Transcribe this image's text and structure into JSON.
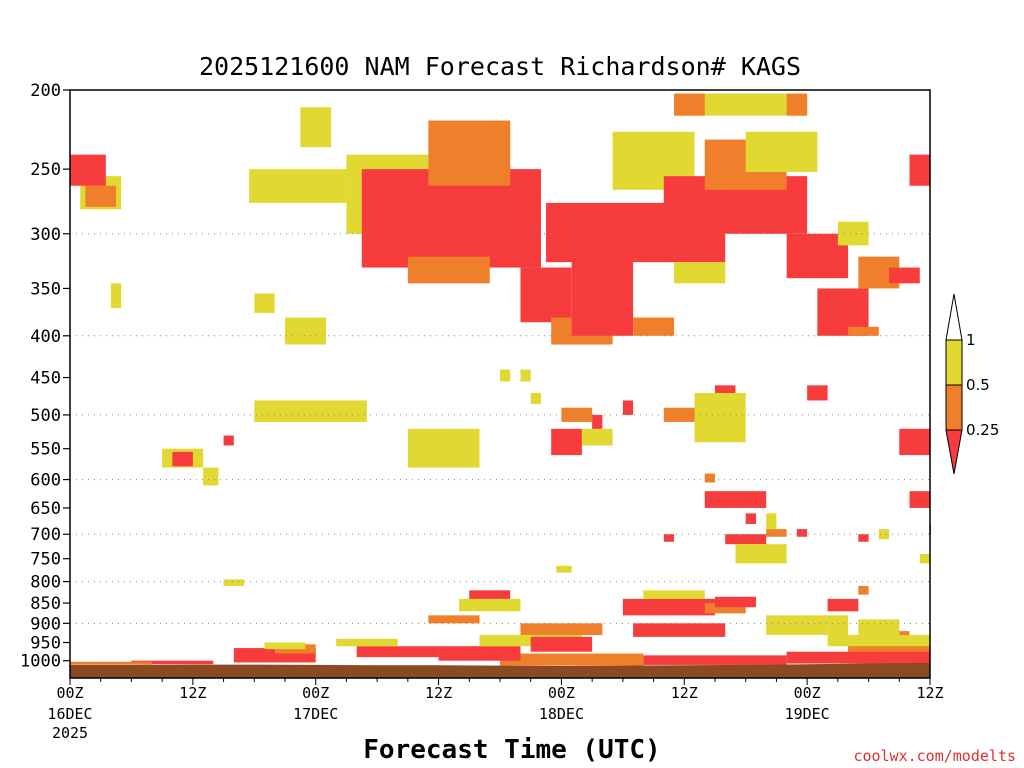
{
  "chart_data": {
    "type": "heatmap",
    "title": "2025121600 NAM Forecast Richardson# KAGS",
    "xlabel": "Forecast Time (UTC)",
    "ylabel": "",
    "y_axis": {
      "unit": "hPa",
      "scale": "log",
      "inverted": true,
      "range": [
        200,
        1050
      ],
      "ticks": [
        200,
        250,
        300,
        350,
        400,
        450,
        500,
        550,
        600,
        650,
        700,
        750,
        800,
        850,
        900,
        950,
        1000
      ],
      "tick_labels": [
        "200",
        "250",
        "300",
        "350",
        "400",
        "450",
        "500",
        "550",
        "600",
        "650",
        "700",
        "750",
        "800",
        "850",
        "900",
        "950",
        "1000"
      ],
      "dotted_grid_at": [
        300,
        400,
        500,
        600,
        700,
        800,
        900
      ]
    },
    "x_axis": {
      "unit": "forecast hour",
      "range": [
        0,
        84
      ],
      "ticks": [
        {
          "hour": 0,
          "label": "00Z",
          "sub": [
            "16DEC",
            "2025"
          ]
        },
        {
          "hour": 12,
          "label": "12Z",
          "sub": []
        },
        {
          "hour": 24,
          "label": "00Z",
          "sub": [
            "17DEC"
          ]
        },
        {
          "hour": 36,
          "label": "12Z",
          "sub": []
        },
        {
          "hour": 48,
          "label": "00Z",
          "sub": [
            "18DEC"
          ]
        },
        {
          "hour": 60,
          "label": "12Z",
          "sub": []
        },
        {
          "hour": 72,
          "label": "00Z",
          "sub": [
            "19DEC"
          ]
        },
        {
          "hour": 84,
          "label": "12Z",
          "sub": []
        }
      ]
    },
    "colorbar": {
      "labels": [
        "1",
        "0.5",
        "0.25"
      ],
      "bins": [
        {
          "range": ">1",
          "color": "#ffffff"
        },
        {
          "range": "0.5-1",
          "color": "#e2d832"
        },
        {
          "range": "0.25-0.5",
          "color": "#ef7f2a"
        },
        {
          "range": "<0.25",
          "color": "#f63c3c"
        }
      ]
    },
    "colors": {
      "yellow": "#e2d832",
      "orange": "#ef7f2a",
      "red": "#f63c3c",
      "ground": "#8a4a22"
    },
    "ground": {
      "hours": [
        0,
        6,
        12,
        18,
        24,
        30,
        36,
        42,
        48,
        54,
        60,
        66,
        72,
        78,
        84
      ],
      "pressure": [
        1012,
        1012,
        1011,
        1011,
        1012,
        1013,
        1013,
        1014,
        1015,
        1014,
        1013,
        1012,
        1010,
        1008,
        1006
      ]
    },
    "regions": [
      {
        "bin": "yellow",
        "h": [
          1,
          5
        ],
        "p": [
          255,
          280
        ]
      },
      {
        "bin": "orange",
        "h": [
          1.5,
          4.5
        ],
        "p": [
          262,
          278
        ]
      },
      {
        "bin": "red",
        "h": [
          0,
          3.5
        ],
        "p": [
          240,
          262
        ]
      },
      {
        "bin": "yellow",
        "h": [
          17.5,
          27
        ],
        "p": [
          250,
          275
        ]
      },
      {
        "bin": "yellow",
        "h": [
          22.5,
          25.5
        ],
        "p": [
          210,
          235
        ]
      },
      {
        "bin": "yellow",
        "h": [
          18,
          29
        ],
        "p": [
          480,
          510
        ]
      },
      {
        "bin": "orange",
        "h": [
          22,
          24.5
        ],
        "p": [
          385,
          400
        ]
      },
      {
        "bin": "yellow",
        "h": [
          21,
          25
        ],
        "p": [
          380,
          410
        ]
      },
      {
        "bin": "yellow",
        "h": [
          9,
          13
        ],
        "p": [
          550,
          580
        ]
      },
      {
        "bin": "red",
        "h": [
          10,
          12
        ],
        "p": [
          555,
          578
        ]
      },
      {
        "bin": "yellow",
        "h": [
          13,
          14.5
        ],
        "p": [
          580,
          610
        ]
      },
      {
        "bin": "yellow",
        "h": [
          18,
          20
        ],
        "p": [
          355,
          375
        ]
      },
      {
        "bin": "yellow",
        "h": [
          33,
          40
        ],
        "p": [
          520,
          580
        ]
      },
      {
        "bin": "yellow",
        "h": [
          27,
          35
        ],
        "p": [
          240,
          300
        ]
      },
      {
        "bin": "red",
        "h": [
          28.5,
          46
        ],
        "p": [
          250,
          330
        ]
      },
      {
        "bin": "orange",
        "h": [
          35,
          43
        ],
        "p": [
          218,
          262
        ]
      },
      {
        "bin": "orange",
        "h": [
          33,
          41
        ],
        "p": [
          320,
          345
        ]
      },
      {
        "bin": "red",
        "h": [
          44,
          49
        ],
        "p": [
          330,
          385
        ]
      },
      {
        "bin": "orange",
        "h": [
          47,
          53
        ],
        "p": [
          380,
          410
        ]
      },
      {
        "bin": "red",
        "h": [
          46.5,
          64
        ],
        "p": [
          275,
          325
        ]
      },
      {
        "bin": "red",
        "h": [
          49,
          55
        ],
        "p": [
          320,
          400
        ]
      },
      {
        "bin": "orange",
        "h": [
          55,
          59
        ],
        "p": [
          380,
          400
        ]
      },
      {
        "bin": "yellow",
        "h": [
          53,
          61
        ],
        "p": [
          225,
          265
        ]
      },
      {
        "bin": "red",
        "h": [
          58,
          72
        ],
        "p": [
          255,
          300
        ]
      },
      {
        "bin": "orange",
        "h": [
          62,
          70
        ],
        "p": [
          230,
          265
        ]
      },
      {
        "bin": "yellow",
        "h": [
          59,
          64
        ],
        "p": [
          325,
          345
        ]
      },
      {
        "bin": "yellow",
        "h": [
          59,
          72
        ],
        "p": [
          202,
          215
        ]
      },
      {
        "bin": "orange",
        "h": [
          59,
          62
        ],
        "p": [
          202,
          215
        ]
      },
      {
        "bin": "orange",
        "h": [
          70,
          72
        ],
        "p": [
          202,
          215
        ]
      },
      {
        "bin": "yellow",
        "h": [
          66,
          73
        ],
        "p": [
          225,
          252
        ]
      },
      {
        "bin": "red",
        "h": [
          70,
          76
        ],
        "p": [
          300,
          340
        ]
      },
      {
        "bin": "red",
        "h": [
          73,
          78
        ],
        "p": [
          350,
          400
        ]
      },
      {
        "bin": "orange",
        "h": [
          77,
          81
        ],
        "p": [
          320,
          350
        ]
      },
      {
        "bin": "red",
        "h": [
          80,
          83
        ],
        "p": [
          330,
          345
        ]
      },
      {
        "bin": "orange",
        "h": [
          76,
          79
        ],
        "p": [
          390,
          400
        ]
      },
      {
        "bin": "red",
        "h": [
          82,
          84
        ],
        "p": [
          240,
          262
        ]
      },
      {
        "bin": "yellow",
        "h": [
          75,
          78
        ],
        "p": [
          290,
          310
        ]
      },
      {
        "bin": "red",
        "h": [
          63,
          65
        ],
        "p": [
          460,
          520
        ]
      },
      {
        "bin": "yellow",
        "h": [
          61,
          66
        ],
        "p": [
          470,
          540
        ]
      },
      {
        "bin": "orange",
        "h": [
          58,
          61
        ],
        "p": [
          490,
          510
        ]
      },
      {
        "bin": "red",
        "h": [
          47,
          50
        ],
        "p": [
          520,
          560
        ]
      },
      {
        "bin": "orange",
        "h": [
          48,
          51
        ],
        "p": [
          490,
          510
        ]
      },
      {
        "bin": "yellow",
        "h": [
          50,
          53
        ],
        "p": [
          520,
          545
        ]
      },
      {
        "bin": "red",
        "h": [
          62,
          68
        ],
        "p": [
          620,
          650
        ]
      },
      {
        "bin": "red",
        "h": [
          64,
          68
        ],
        "p": [
          700,
          720
        ]
      },
      {
        "bin": "orange",
        "h": [
          68,
          70
        ],
        "p": [
          690,
          705
        ]
      },
      {
        "bin": "yellow",
        "h": [
          65,
          70
        ],
        "p": [
          720,
          760
        ]
      },
      {
        "bin": "red",
        "h": [
          72,
          74
        ],
        "p": [
          460,
          480
        ]
      },
      {
        "bin": "red",
        "h": [
          81,
          84
        ],
        "p": [
          520,
          560
        ]
      },
      {
        "bin": "red",
        "h": [
          82,
          84
        ],
        "p": [
          620,
          650
        ]
      },
      {
        "bin": "yellow",
        "h": [
          38,
          44
        ],
        "p": [
          840,
          870
        ]
      },
      {
        "bin": "red",
        "h": [
          39,
          43
        ],
        "p": [
          820,
          840
        ]
      },
      {
        "bin": "orange",
        "h": [
          35,
          40
        ],
        "p": [
          880,
          900
        ]
      },
      {
        "bin": "red",
        "h": [
          54,
          63
        ],
        "p": [
          840,
          880
        ]
      },
      {
        "bin": "yellow",
        "h": [
          56,
          62
        ],
        "p": [
          820,
          840
        ]
      },
      {
        "bin": "red",
        "h": [
          55,
          64
        ],
        "p": [
          900,
          935
        ]
      },
      {
        "bin": "orange",
        "h": [
          62,
          66
        ],
        "p": [
          850,
          875
        ]
      },
      {
        "bin": "red",
        "h": [
          63,
          67
        ],
        "p": [
          835,
          860
        ]
      },
      {
        "bin": "yellow",
        "h": [
          68,
          74
        ],
        "p": [
          880,
          930
        ]
      },
      {
        "bin": "red",
        "h": [
          74,
          77
        ],
        "p": [
          840,
          870
        ]
      },
      {
        "bin": "yellow",
        "h": [
          74,
          76
        ],
        "p": [
          880,
          940
        ]
      },
      {
        "bin": "orange",
        "h": [
          79,
          82
        ],
        "p": [
          920,
          960
        ]
      },
      {
        "bin": "yellow",
        "h": [
          77,
          81
        ],
        "p": [
          890,
          940
        ]
      },
      {
        "bin": "red",
        "h": [
          81,
          84
        ],
        "p": [
          930,
          1005
        ]
      },
      {
        "bin": "orange",
        "h": [
          76,
          84
        ],
        "p": [
          950,
          1005
        ]
      },
      {
        "bin": "yellow",
        "h": [
          74,
          84
        ],
        "p": [
          930,
          960
        ]
      },
      {
        "bin": "red",
        "h": [
          70,
          84
        ],
        "p": [
          975,
          1008
        ]
      },
      {
        "bin": "red",
        "h": [
          56,
          70
        ],
        "p": [
          985,
          1012
        ]
      },
      {
        "bin": "orange",
        "h": [
          42,
          56
        ],
        "p": [
          980,
          1014
        ]
      },
      {
        "bin": "red",
        "h": [
          36,
          44
        ],
        "p": [
          960,
          1000
        ]
      },
      {
        "bin": "yellow",
        "h": [
          40,
          50
        ],
        "p": [
          930,
          960
        ]
      },
      {
        "bin": "orange",
        "h": [
          44,
          52
        ],
        "p": [
          900,
          930
        ]
      },
      {
        "bin": "red",
        "h": [
          45,
          51
        ],
        "p": [
          935,
          975
        ]
      },
      {
        "bin": "red",
        "h": [
          28,
          36
        ],
        "p": [
          960,
          990
        ]
      },
      {
        "bin": "yellow",
        "h": [
          26,
          32
        ],
        "p": [
          940,
          960
        ]
      },
      {
        "bin": "red",
        "h": [
          16,
          24
        ],
        "p": [
          965,
          1005
        ]
      },
      {
        "bin": "orange",
        "h": [
          20,
          24
        ],
        "p": [
          955,
          980
        ]
      },
      {
        "bin": "yellow",
        "h": [
          19,
          23
        ],
        "p": [
          950,
          968
        ]
      },
      {
        "bin": "red",
        "h": [
          6,
          14
        ],
        "p": [
          1000,
          1010
        ]
      },
      {
        "bin": "orange",
        "h": [
          0,
          8
        ],
        "p": [
          1003,
          1011
        ]
      },
      {
        "bin": "yellow",
        "h": [
          15,
          17
        ],
        "p": [
          795,
          810
        ]
      },
      {
        "bin": "yellow",
        "h": [
          47.5,
          49
        ],
        "p": [
          765,
          780
        ]
      },
      {
        "bin": "yellow",
        "h": [
          84,
          85
        ],
        "p": [
          860,
          870
        ]
      }
    ],
    "scatter_cells": [
      {
        "bin": "red",
        "h": [
          51,
          52
        ],
        "p": [
          500,
          520
        ]
      },
      {
        "bin": "red",
        "h": [
          54,
          55
        ],
        "p": [
          480,
          500
        ]
      },
      {
        "bin": "yellow",
        "h": [
          45,
          46
        ],
        "p": [
          470,
          485
        ]
      },
      {
        "bin": "yellow",
        "h": [
          42,
          43
        ],
        "p": [
          440,
          455
        ]
      },
      {
        "bin": "yellow",
        "h": [
          44,
          45
        ],
        "p": [
          440,
          455
        ]
      },
      {
        "bin": "red",
        "h": [
          15,
          16
        ],
        "p": [
          530,
          545
        ]
      },
      {
        "bin": "yellow",
        "h": [
          4,
          5
        ],
        "p": [
          345,
          370
        ]
      },
      {
        "bin": "red",
        "h": [
          58,
          59
        ],
        "p": [
          700,
          715
        ]
      },
      {
        "bin": "red",
        "h": [
          66,
          67
        ],
        "p": [
          660,
          680
        ]
      },
      {
        "bin": "orange",
        "h": [
          62,
          63
        ],
        "p": [
          590,
          605
        ]
      },
      {
        "bin": "yellow",
        "h": [
          68,
          69
        ],
        "p": [
          660,
          690
        ]
      },
      {
        "bin": "red",
        "h": [
          71,
          72
        ],
        "p": [
          690,
          705
        ]
      },
      {
        "bin": "red",
        "h": [
          77,
          78
        ],
        "p": [
          700,
          715
        ]
      },
      {
        "bin": "yellow",
        "h": [
          79,
          80
        ],
        "p": [
          690,
          710
        ]
      },
      {
        "bin": "orange",
        "h": [
          77,
          78
        ],
        "p": [
          810,
          830
        ]
      },
      {
        "bin": "yellow",
        "h": [
          83,
          84
        ],
        "p": [
          740,
          760
        ]
      },
      {
        "bin": "red",
        "h": [
          84,
          85
        ],
        "p": [
          680,
          700
        ]
      }
    ]
  }
}
